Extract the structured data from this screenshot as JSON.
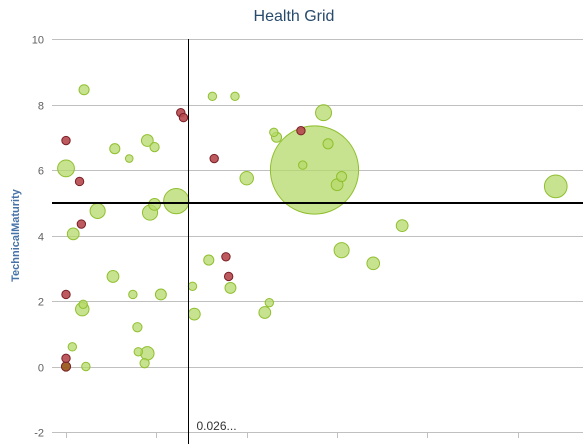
{
  "chart_data": {
    "type": "scatter",
    "title": "Health Grid",
    "xlabel": "",
    "ylabel": "TechnicalMaturity",
    "xlim": [
      0,
      5.5
    ],
    "ylim": [
      -2,
      10
    ],
    "y_ticks": [
      "-2",
      "0",
      "2",
      "4",
      "6",
      "8",
      "10"
    ],
    "x_ticks_labeled": false,
    "x_tick_values": [
      0,
      1,
      2,
      3,
      4,
      5
    ],
    "grid": "horizontal",
    "legend": "none",
    "bubble": true,
    "reference_lines": {
      "vertical_x": 1.35,
      "horizontal_y": 5.0,
      "vertical_label": "0.026..."
    },
    "colors": {
      "green_fill": "#b5d96a",
      "green_stroke": "#8fbf2e",
      "red_fill": "#b5484f",
      "red_stroke": "#7a1f25",
      "brown_fill": "#9b5a1c",
      "grid": "#c0c0c0",
      "axis_label": "#4572a7",
      "title": "#274b6d",
      "tick_label": "#606060"
    },
    "points": [
      {
        "x": 0.2,
        "y": 8.45,
        "size": 1.2,
        "color": "green"
      },
      {
        "x": 0.0,
        "y": 6.9,
        "size": 1.0,
        "color": "red"
      },
      {
        "x": 0.0,
        "y": 6.05,
        "size": 2.0,
        "color": "green"
      },
      {
        "x": 0.15,
        "y": 5.65,
        "size": 1.0,
        "color": "red"
      },
      {
        "x": 0.35,
        "y": 4.75,
        "size": 1.8,
        "color": "green"
      },
      {
        "x": 0.08,
        "y": 4.05,
        "size": 1.4,
        "color": "green"
      },
      {
        "x": 0.17,
        "y": 4.35,
        "size": 1.0,
        "color": "red"
      },
      {
        "x": 0.0,
        "y": 2.2,
        "size": 1.0,
        "color": "red"
      },
      {
        "x": 0.18,
        "y": 1.75,
        "size": 1.6,
        "color": "green"
      },
      {
        "x": 0.19,
        "y": 1.9,
        "size": 1.0,
        "color": "green"
      },
      {
        "x": 0.07,
        "y": 0.6,
        "size": 1.0,
        "color": "green"
      },
      {
        "x": 0.0,
        "y": 0.25,
        "size": 1.0,
        "color": "red"
      },
      {
        "x": 0.22,
        "y": 0.0,
        "size": 1.0,
        "color": "green"
      },
      {
        "x": 0.0,
        "y": 0.0,
        "size": 1.1,
        "color": "brown"
      },
      {
        "x": 0.54,
        "y": 6.65,
        "size": 1.2,
        "color": "green"
      },
      {
        "x": 0.7,
        "y": 6.35,
        "size": 0.9,
        "color": "green"
      },
      {
        "x": 0.9,
        "y": 6.9,
        "size": 1.4,
        "color": "green"
      },
      {
        "x": 0.98,
        "y": 6.7,
        "size": 1.1,
        "color": "green"
      },
      {
        "x": 0.93,
        "y": 4.7,
        "size": 1.8,
        "color": "green"
      },
      {
        "x": 0.98,
        "y": 4.95,
        "size": 1.4,
        "color": "green"
      },
      {
        "x": 1.22,
        "y": 5.05,
        "size": 3.0,
        "color": "green"
      },
      {
        "x": 1.27,
        "y": 7.75,
        "size": 1.0,
        "color": "red"
      },
      {
        "x": 1.3,
        "y": 7.6,
        "size": 1.0,
        "color": "red"
      },
      {
        "x": 0.52,
        "y": 2.75,
        "size": 1.4,
        "color": "green"
      },
      {
        "x": 0.74,
        "y": 2.2,
        "size": 1.0,
        "color": "green"
      },
      {
        "x": 1.05,
        "y": 2.2,
        "size": 1.3,
        "color": "green"
      },
      {
        "x": 0.79,
        "y": 1.2,
        "size": 1.1,
        "color": "green"
      },
      {
        "x": 0.8,
        "y": 0.45,
        "size": 1.0,
        "color": "green"
      },
      {
        "x": 0.9,
        "y": 0.4,
        "size": 1.6,
        "color": "green"
      },
      {
        "x": 0.87,
        "y": 0.1,
        "size": 1.1,
        "color": "green"
      },
      {
        "x": 1.62,
        "y": 8.25,
        "size": 1.0,
        "color": "green"
      },
      {
        "x": 1.87,
        "y": 8.25,
        "size": 1.0,
        "color": "green"
      },
      {
        "x": 1.64,
        "y": 6.35,
        "size": 1.0,
        "color": "red"
      },
      {
        "x": 2.0,
        "y": 5.75,
        "size": 1.6,
        "color": "green"
      },
      {
        "x": 2.3,
        "y": 7.15,
        "size": 1.0,
        "color": "green"
      },
      {
        "x": 2.33,
        "y": 7.0,
        "size": 1.2,
        "color": "green"
      },
      {
        "x": 2.6,
        "y": 7.2,
        "size": 1.0,
        "color": "red"
      },
      {
        "x": 2.85,
        "y": 7.75,
        "size": 1.9,
        "color": "green"
      },
      {
        "x": 2.75,
        "y": 6.0,
        "size": 10.5,
        "color": "green"
      },
      {
        "x": 2.62,
        "y": 6.15,
        "size": 1.0,
        "color": "green"
      },
      {
        "x": 2.9,
        "y": 6.8,
        "size": 1.2,
        "color": "green"
      },
      {
        "x": 3.05,
        "y": 5.8,
        "size": 1.2,
        "color": "green"
      },
      {
        "x": 3.0,
        "y": 5.55,
        "size": 1.4,
        "color": "green"
      },
      {
        "x": 1.4,
        "y": 2.45,
        "size": 1.0,
        "color": "green"
      },
      {
        "x": 1.58,
        "y": 3.25,
        "size": 1.2,
        "color": "green"
      },
      {
        "x": 1.77,
        "y": 3.35,
        "size": 1.0,
        "color": "red"
      },
      {
        "x": 1.8,
        "y": 2.75,
        "size": 1.0,
        "color": "red"
      },
      {
        "x": 1.82,
        "y": 2.4,
        "size": 1.3,
        "color": "green"
      },
      {
        "x": 1.42,
        "y": 1.6,
        "size": 1.4,
        "color": "green"
      },
      {
        "x": 2.25,
        "y": 1.95,
        "size": 1.0,
        "color": "green"
      },
      {
        "x": 2.2,
        "y": 1.65,
        "size": 1.4,
        "color": "green"
      },
      {
        "x": 3.05,
        "y": 3.55,
        "size": 1.8,
        "color": "green"
      },
      {
        "x": 3.4,
        "y": 3.15,
        "size": 1.5,
        "color": "green"
      },
      {
        "x": 3.72,
        "y": 4.3,
        "size": 1.4,
        "color": "green"
      },
      {
        "x": 5.42,
        "y": 5.5,
        "size": 2.7,
        "color": "green"
      }
    ]
  }
}
